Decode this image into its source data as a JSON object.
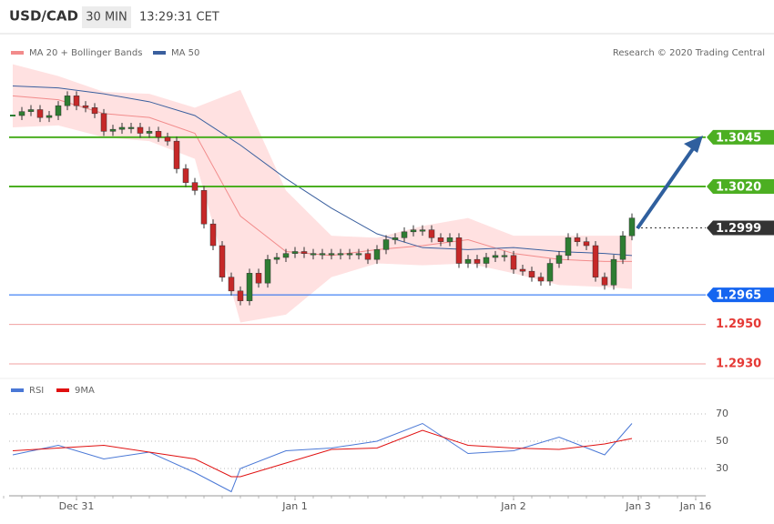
{
  "header": {
    "symbol": "USD/CAD",
    "interval": "30 MIN",
    "time": "13:29:31 CET",
    "credit": "Research © 2020 Trading Central"
  },
  "chart_data": [
    {
      "type": "candlestick",
      "xlim": [
        -1,
        76
      ],
      "xticks": [
        {
          "value": 7,
          "label": "Dec 31"
        },
        {
          "value": 31,
          "label": "Jan 1"
        },
        {
          "value": 55,
          "label": "Jan 2"
        },
        {
          "value": 68.7,
          "label": "Jan 3"
        },
        {
          "value": 75,
          "label": "Jan 16"
        }
      ],
      "ylim": [
        1.2924,
        1.3086
      ],
      "up_color": "#2e7d32",
      "down_color": "#c62828",
      "close": [
        1.3056,
        1.3058,
        1.3059,
        1.3055,
        1.3056,
        1.3061,
        1.3066,
        1.3061,
        1.306,
        1.3057,
        1.3048,
        1.3049,
        1.305,
        1.305,
        1.3047,
        1.3048,
        1.3045,
        1.3043,
        1.3029,
        1.3022,
        1.3018,
        1.3001,
        1.299,
        1.2974,
        1.2967,
        1.2962,
        1.2976,
        1.2971,
        1.2983,
        1.2984,
        1.2986,
        1.2987,
        1.2986,
        1.2986,
        1.2986,
        1.2986,
        1.2986,
        1.2986,
        1.2986,
        1.2983,
        1.2988,
        1.2993,
        1.2994,
        1.2997,
        1.2998,
        1.2998,
        1.2994,
        1.2992,
        1.2994,
        1.2981,
        1.2983,
        1.2981,
        1.2984,
        1.2985,
        1.2985,
        1.2978,
        1.2977,
        1.2974,
        1.2972,
        1.2981,
        1.2985,
        1.2994,
        1.2992,
        1.299,
        1.2974,
        1.297,
        1.2983,
        1.2995,
        1.3004
      ],
      "bands": {
        "name": "MA 20 + Bollinger Bands",
        "color": "#f28b8b",
        "fill": "#ffe1e1",
        "x": [
          0,
          5,
          10,
          15,
          20,
          25,
          30,
          35,
          40,
          45,
          50,
          55,
          60,
          65,
          68
        ],
        "upper": [
          1.3082,
          1.3076,
          1.3068,
          1.3067,
          1.306,
          1.3069,
          1.3018,
          1.2995,
          1.2994,
          1.3,
          1.3004,
          1.2995,
          1.2995,
          1.2995,
          1.2995
        ],
        "lower": [
          1.305,
          1.3051,
          1.3045,
          1.3043,
          1.3034,
          1.2951,
          1.2955,
          1.2974,
          1.2981,
          1.298,
          1.2981,
          1.2976,
          1.297,
          1.2969,
          1.2968
        ],
        "ma20": [
          1.3066,
          1.3064,
          1.3057,
          1.3055,
          1.3047,
          1.3005,
          1.2987,
          1.2985,
          1.2988,
          1.299,
          1.2993,
          1.2986,
          1.2983,
          1.2982,
          1.2982
        ]
      },
      "ma50": {
        "name": "MA 50",
        "color": "#3a5f9e",
        "x": [
          0,
          5,
          10,
          15,
          20,
          25,
          30,
          35,
          40,
          45,
          50,
          55,
          60,
          65,
          68
        ],
        "values": [
          1.3071,
          1.307,
          1.3067,
          1.3063,
          1.3056,
          1.3041,
          1.3024,
          1.3009,
          1.2996,
          1.2989,
          1.2988,
          1.2989,
          1.2987,
          1.2986,
          1.2985
        ]
      },
      "levels": [
        {
          "value": 1.3045,
          "color": "#4caf22",
          "style": "box"
        },
        {
          "value": 1.302,
          "label": "1.3020",
          "color": "#4caf22",
          "style": "box"
        },
        {
          "value": 1.2999,
          "color": "#333333",
          "style": "current"
        },
        {
          "value": 1.2965,
          "color": "#1565f0",
          "style": "box"
        },
        {
          "value": 1.295,
          "label": "1.2950",
          "color": "#e53935",
          "style": "text"
        },
        {
          "value": 1.293,
          "label": "1.2930",
          "color": "#e53935",
          "style": "text"
        }
      ]
    },
    {
      "type": "line",
      "ylim": [
        10,
        80
      ],
      "yticks": [
        30,
        50,
        70
      ],
      "grid": true,
      "series": [
        {
          "name": "RSI",
          "color": "#4a78d6",
          "x": [
            0,
            5,
            10,
            15,
            20,
            24,
            25,
            30,
            35,
            40,
            45,
            50,
            55,
            60,
            65,
            68
          ],
          "values": [
            40,
            47,
            37,
            42,
            27,
            13,
            30,
            43,
            45,
            50,
            63,
            41,
            43,
            53,
            40,
            63
          ]
        },
        {
          "name": "9MA",
          "color": "#e01010",
          "x": [
            0,
            5,
            10,
            15,
            20,
            24,
            25,
            30,
            35,
            40,
            45,
            50,
            55,
            60,
            65,
            68
          ],
          "values": [
            43,
            45,
            47,
            42,
            37,
            24,
            24,
            34,
            44,
            45,
            58,
            47,
            45,
            44,
            48,
            52
          ]
        }
      ]
    }
  ]
}
